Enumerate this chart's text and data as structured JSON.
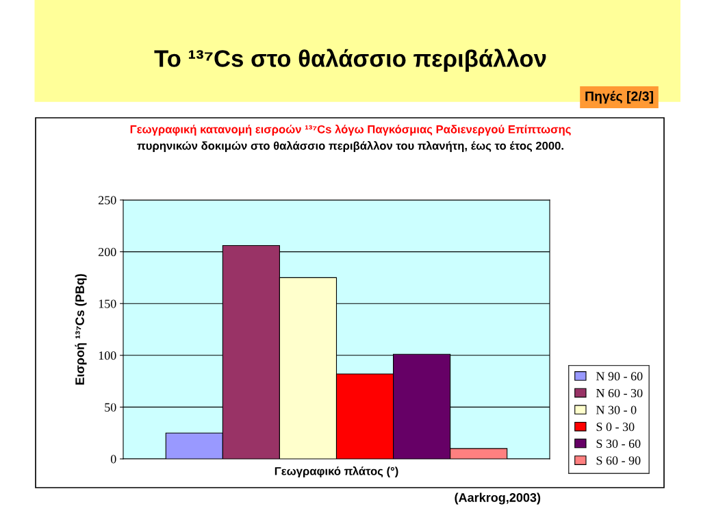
{
  "chart_data": {
    "type": "bar",
    "title": "Το ¹³⁷Cs στο θαλάσσιο περιβάλλον",
    "subtitle": "Πηγές [2/3]",
    "annotations": [
      "Γεωγραφική κατανομή εισροών ¹³⁷Cs λόγω Παγκόσμιας Ραδιενεργού Επίπτωσης",
      "πυρηνικών δοκιμών στο θαλάσσιο περιβάλλον του πλανήτη, έως το έτος 2000.",
      "(Aarkrog,2003)"
    ],
    "xlabel": "Γεωγραφικό πλάτος (°)",
    "ylabel": "Εισροή ¹³⁷Cs (PBq)",
    "categories": [
      null
    ],
    "series": [
      {
        "name": "N 90 - 60",
        "color": "#9999ff",
        "values": [
          25
        ]
      },
      {
        "name": "N 60 - 30",
        "color": "#993366",
        "values": [
          206
        ]
      },
      {
        "name": "N 30 - 0",
        "color": "#ffffcc",
        "values": [
          175
        ]
      },
      {
        "name": "S 0 - 30",
        "color": "#ff0000",
        "values": [
          82
        ]
      },
      {
        "name": "S 30 - 60",
        "color": "#660066",
        "values": [
          101
        ]
      },
      {
        "name": "S 60 - 90",
        "color": "#ff8080",
        "values": [
          10
        ]
      }
    ],
    "ylim": [
      0,
      250
    ],
    "yticks": [
      0,
      50,
      100,
      150,
      200,
      250
    ],
    "grid": "y",
    "legend": "bottom right",
    "tick_labels": "y"
  }
}
